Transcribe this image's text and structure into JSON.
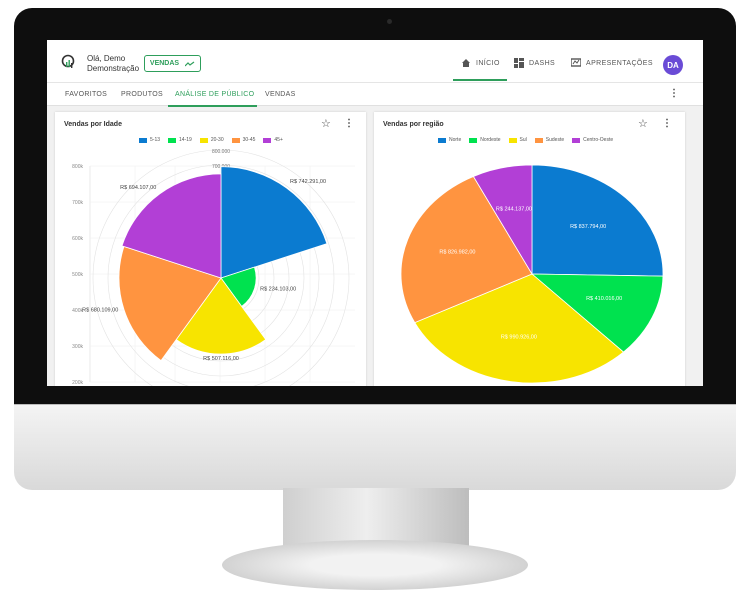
{
  "header": {
    "greeting_line1": "Olá, Demo",
    "greeting_line2": "Demonstração",
    "dashboard_button": "VENDAS",
    "nav": [
      {
        "label": "INÍCIO",
        "icon": "home-icon"
      },
      {
        "label": "DASHS",
        "icon": "dashboard-icon"
      },
      {
        "label": "APRESENTAÇÕES",
        "icon": "presentation-icon"
      }
    ],
    "avatar": "DA"
  },
  "tabs": [
    "FAVORITOS",
    "PRODUTOS",
    "ANÁLISE DE PÚBLICO",
    "VENDAS"
  ],
  "colors": {
    "accent": "#2e9e5b",
    "avatar": "#6a4bd6"
  },
  "chart_data": [
    {
      "type": "polar-area",
      "title": "Vendas por Idade",
      "categories": [
        "5-13",
        "14-19",
        "20-30",
        "30-45",
        "45+"
      ],
      "colors": [
        "#0b7bd0",
        "#00e24f",
        "#f7e400",
        "#ff9440",
        "#b23fd6"
      ],
      "values": [
        742291.0,
        234103.0,
        507116.0,
        680109.0,
        694107.0
      ],
      "data_labels": [
        "R$ 742.291,00",
        "R$ 234.103,00",
        "R$ 507.116,00",
        "R$ 680.109,00",
        "R$ 694.107,00"
      ],
      "y_ticks": [
        "800k",
        "700k",
        "600k",
        "500k",
        "400k",
        "300k",
        "200k"
      ],
      "ring_labels": [
        "800.000",
        "700.000"
      ],
      "rlim": [
        0,
        800000
      ]
    },
    {
      "type": "pie",
      "title": "Vendas por região",
      "categories": [
        "Norte",
        "Nordeste",
        "Sul",
        "Sudeste",
        "Centro-Oeste"
      ],
      "colors": [
        "#0b7bd0",
        "#00e24f",
        "#f7e400",
        "#ff9440",
        "#b23fd6"
      ],
      "values": [
        837794.0,
        410016.0,
        990926.0,
        826982.0,
        244137.0
      ],
      "data_labels": [
        "R$ 837.794,00",
        "R$ 410.016,00",
        "R$ 990.926,00",
        "R$ 826.982,00",
        "R$ 244.137,00"
      ]
    }
  ]
}
